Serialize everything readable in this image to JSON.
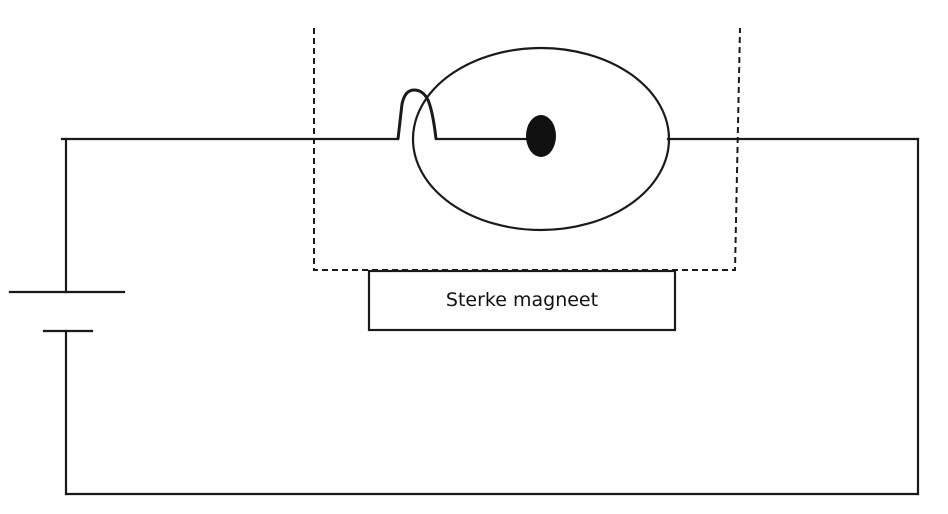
{
  "diagram": {
    "magnet_label": "Sterke magneet"
  },
  "colors": {
    "line": "#1a1a1a",
    "background": "#ffffff"
  }
}
